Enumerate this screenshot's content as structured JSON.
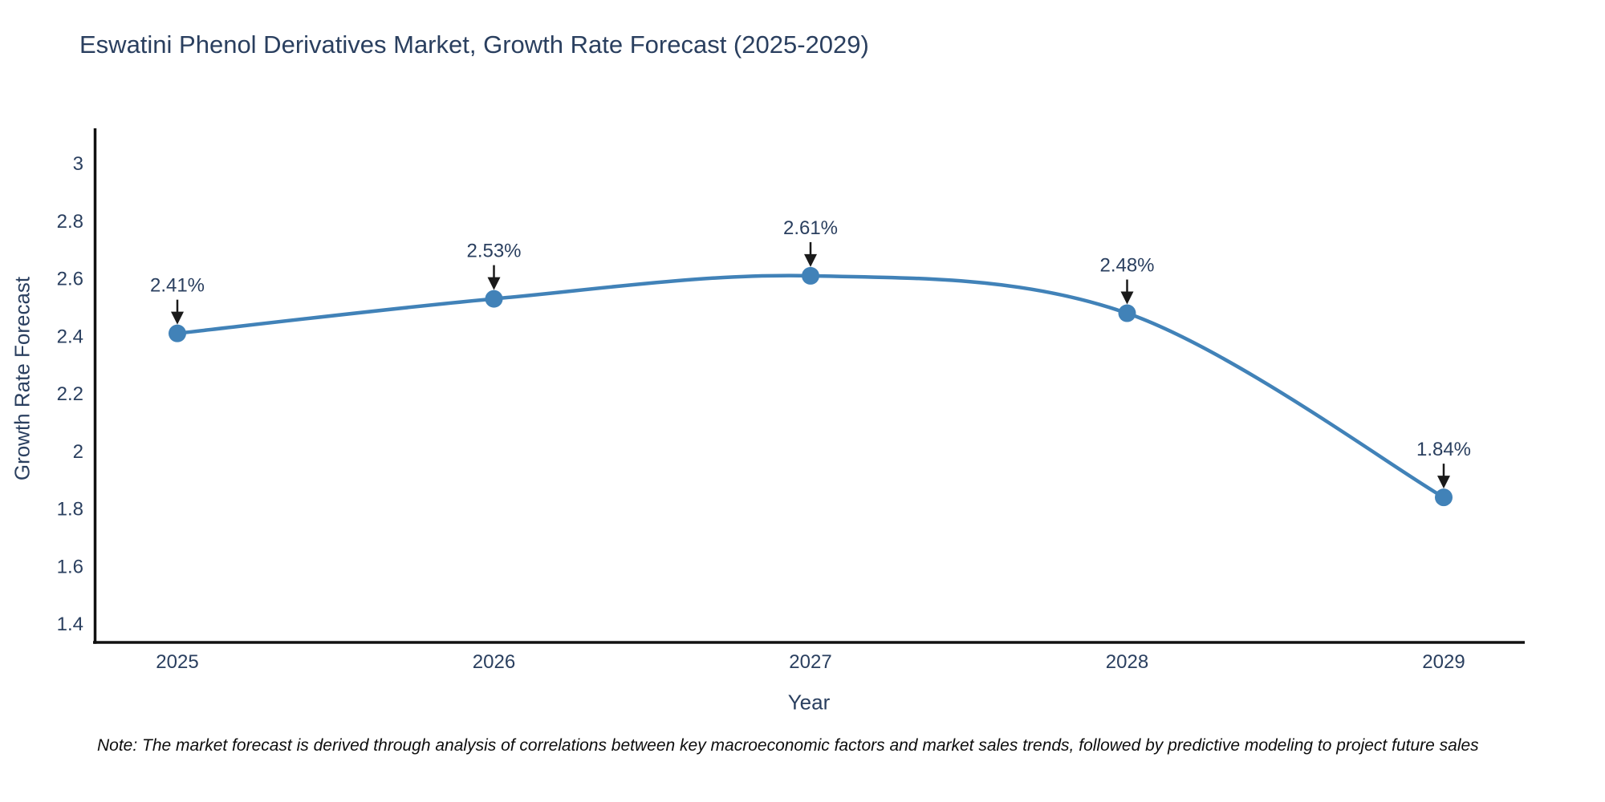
{
  "title": "Eswatini Phenol Derivatives Market, Growth Rate Forecast (2025-2029)",
  "note": "Note: The market forecast is derived through analysis of correlations between key macroeconomic factors and market sales trends, followed by predictive modeling to project future sales",
  "chart_data": {
    "type": "line",
    "title": "Eswatini Phenol Derivatives Market, Growth Rate Forecast (2025-2029)",
    "xlabel": "Year",
    "ylabel": "Growth Rate Forecast",
    "x": [
      2025,
      2026,
      2027,
      2028,
      2029
    ],
    "series": [
      {
        "name": "Growth Rate Forecast",
        "values": [
          2.41,
          2.53,
          2.61,
          2.48,
          1.84
        ]
      }
    ],
    "point_labels": [
      "2.41%",
      "2.53%",
      "2.61%",
      "2.48%",
      "1.84%"
    ],
    "yticks": [
      1.4,
      1.6,
      1.8,
      2,
      2.2,
      2.4,
      2.6,
      2.8,
      3
    ],
    "ylim": [
      1.34,
      3.13
    ],
    "line_shape": "spline",
    "grid": false,
    "legend": "none",
    "colors": {
      "line": "#4182b8",
      "marker": "#4182b8",
      "text": "#2a3f5f",
      "axis": "#111111",
      "annotation_arrow": "#1a1a1a"
    }
  }
}
